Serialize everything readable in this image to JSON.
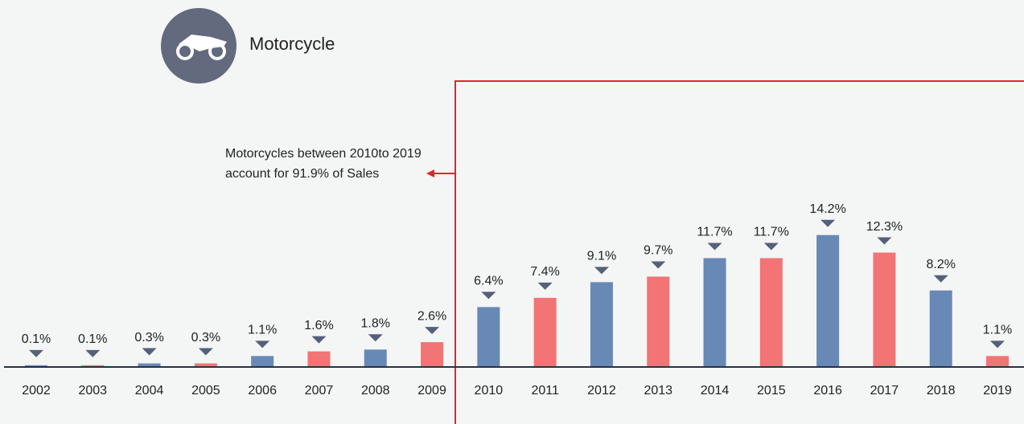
{
  "chart_data": {
    "type": "bar",
    "title": "Motorcycle",
    "annotation": [
      "Motorcycles between 2010to 2019",
      "account for 91.9% of Sales"
    ],
    "categories": [
      "2002",
      "2003",
      "2004",
      "2005",
      "2006",
      "2007",
      "2008",
      "2009",
      "2010",
      "2011",
      "2012",
      "2013",
      "2014",
      "2015",
      "2016",
      "2017",
      "2018",
      "2019"
    ],
    "values": [
      0.1,
      0.1,
      0.3,
      0.3,
      1.1,
      1.6,
      1.8,
      2.6,
      6.4,
      7.4,
      9.1,
      9.7,
      11.7,
      11.7,
      14.2,
      12.3,
      8.2,
      1.1
    ],
    "value_labels": [
      "0.1%",
      "0.1%",
      "0.3%",
      "0.3%",
      "1.1%",
      "1.6%",
      "1.8%",
      "2.6%",
      "6.4%",
      "7.4%",
      "9.1%",
      "9.7%",
      "11.7%",
      "11.7%",
      "14.2%",
      "12.3%",
      "8.2%",
      "1.1%"
    ],
    "colors": [
      "#6889b6",
      "#f27474",
      "#6889b6",
      "#f27474",
      "#6889b6",
      "#f27474",
      "#6889b6",
      "#f27474",
      "#6889b6",
      "#f27474",
      "#6889b6",
      "#f27474",
      "#6889b6",
      "#f27474",
      "#6889b6",
      "#f27474",
      "#6889b6",
      "#f27474"
    ]
  }
}
